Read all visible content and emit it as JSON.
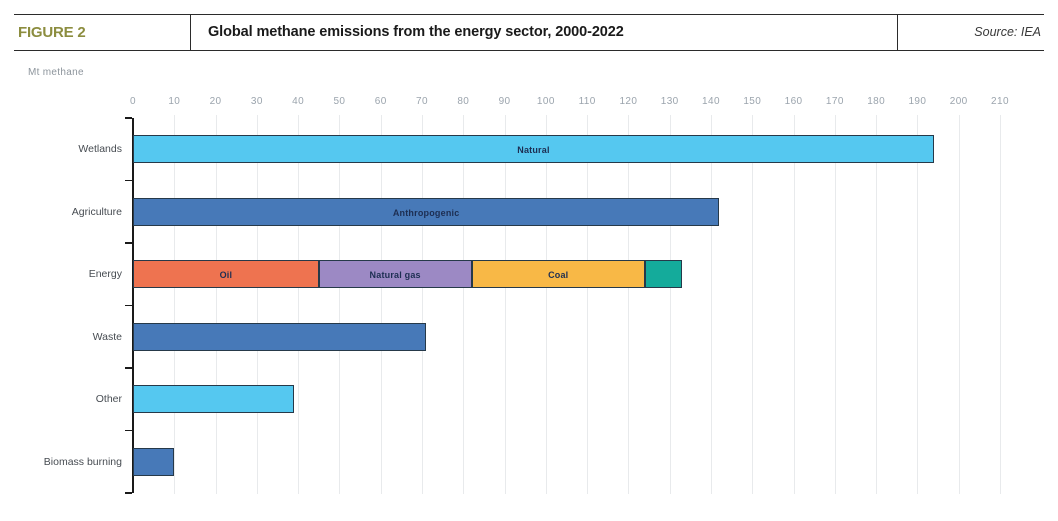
{
  "header": {
    "figure_label": "FIGURE 2",
    "title": "Global methane emissions from the energy sector, 2000-2022",
    "source": "Source: IEA"
  },
  "colors": {
    "figure_label": "#8C8D3F",
    "natural": "#55C8F0",
    "anthropogenic": "#4779B8",
    "oil": "#EE7350",
    "natural_gas": "#9C89C4",
    "coal": "#F8B846",
    "energy_other_segment": "#14AB9B",
    "axis": "#1a1a1a",
    "gridline": "#e8eaec"
  },
  "chart_data": {
    "type": "bar",
    "orientation": "horizontal",
    "title": "Global methane emissions from the energy sector, 2000-2022",
    "unit": "Mt methane",
    "xlim": [
      0,
      210
    ],
    "tick_step": 10,
    "tick_labels": [
      "0",
      "10",
      "20",
      "30",
      "40",
      "50",
      "60",
      "70",
      "80",
      "90",
      "100",
      "110",
      "120",
      "130",
      "140",
      "150",
      "160",
      "170",
      "180",
      "190",
      "200",
      "210"
    ],
    "grid": true,
    "legend_position": "labels-inside-bars",
    "categories": [
      "Wetlands",
      "Agriculture",
      "Energy",
      "Waste",
      "Other",
      "Biomass burning"
    ],
    "rows": [
      {
        "category": "Wetlands",
        "segments": [
          {
            "label": "Natural",
            "value": 194,
            "color": "#55C8F0"
          }
        ]
      },
      {
        "category": "Agriculture",
        "segments": [
          {
            "label": "Anthropogenic",
            "value": 142,
            "color": "#4779B8"
          }
        ]
      },
      {
        "category": "Energy",
        "segments": [
          {
            "label": "Oil",
            "value": 45,
            "color": "#EE7350"
          },
          {
            "label": "Natural gas",
            "value": 37,
            "color": "#9C89C4"
          },
          {
            "label": "Coal",
            "value": 42,
            "color": "#F8B846"
          },
          {
            "label": "",
            "value": 9,
            "color": "#14AB9B"
          }
        ]
      },
      {
        "category": "Waste",
        "segments": [
          {
            "label": "",
            "value": 71,
            "color": "#4779B8"
          }
        ]
      },
      {
        "category": "Other",
        "segments": [
          {
            "label": "",
            "value": 39,
            "color": "#55C8F0"
          }
        ]
      },
      {
        "category": "Biomass burning",
        "segments": [
          {
            "label": "",
            "value": 10,
            "color": "#4779B8"
          }
        ]
      }
    ]
  }
}
